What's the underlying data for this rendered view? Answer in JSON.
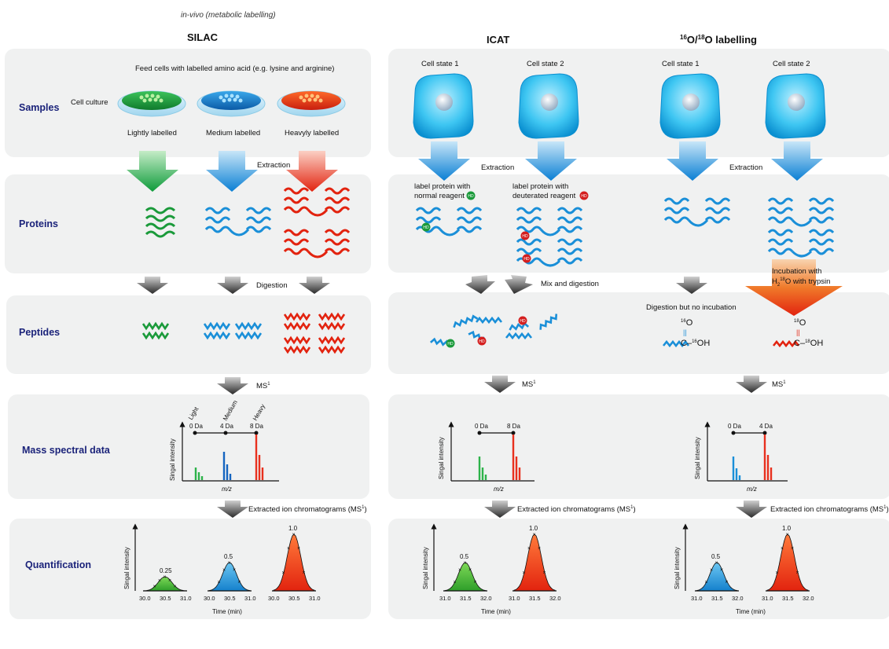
{
  "header": {
    "invivo": "in-vivo (metabolic labelling)",
    "silac": "SILAC",
    "icat": "ICAT",
    "o18_sup1": "16",
    "o18_mid": "O/",
    "o18_sup2": "18",
    "o18_end": "O labelling"
  },
  "rows": {
    "samples": "Samples",
    "proteins": "Proteins",
    "peptides": "Peptides",
    "mass": "Mass spectral data",
    "quant": "Quantification"
  },
  "silac": {
    "feed": "Feed cells with labelled amino acid (e.g. lysine and arginine)",
    "culture": "Cell culture",
    "light": "Lightly labelled",
    "medium": "Medium labelled",
    "heavy": "Heavyly labelled",
    "extraction": "Extraction",
    "digestion": "Digestion",
    "ms1": "MS",
    "xic": "Extracted ion chromatograms (MS",
    "spec": {
      "labels": [
        "Light",
        "Medium",
        "Heavy"
      ],
      "da": [
        "0 Da",
        "4 Da",
        "8 Da"
      ],
      "xlabel": "m/z",
      "ylabel": "Singal intensity"
    },
    "quant": {
      "values": [
        "0.25",
        "0.5",
        "1.0"
      ],
      "ticks": [
        "30.0",
        "30.5",
        "31.0",
        "30.0",
        "30.5",
        "31.0",
        "30.0",
        "30.5",
        "31.0"
      ],
      "xlabel": "Time (min)",
      "ylabel": "Singal intensity"
    }
  },
  "icat": {
    "state1": "Cell state 1",
    "state2": "Cell state 2",
    "extraction": "Extraction",
    "label1a": "label protein with",
    "label1b": "normal reagent",
    "label2a": "label protein with",
    "label2b": "deuterated reagent",
    "mix": "Mix and digestion",
    "ms1": "MS",
    "xic": "Extracted ion chromatograms (MS",
    "spec": {
      "da": [
        "0 Da",
        "8 Da"
      ],
      "xlabel": "m/z",
      "ylabel": "Singal intensity"
    },
    "quant": {
      "values": [
        "0.5",
        "1.0"
      ],
      "ticks": [
        "31.0",
        "31.5",
        "32.0",
        "31.0",
        "31.5",
        "32.0"
      ],
      "xlabel": "Time (min)",
      "ylabel": "Singal intensity"
    }
  },
  "o18": {
    "state1": "Cell state 1",
    "state2": "Cell state 2",
    "extraction": "Extraction",
    "incub1": "Incubation with",
    "incub2a": "H",
    "incub2sub": "2",
    "incub2sup": "18",
    "incub2b": "O with trypsin",
    "nodigest": "Digestion but no incubation",
    "ms1": "MS",
    "xic": "Extracted ion chromatograms (MS",
    "chem16": {
      "sup": "16",
      "o": "O",
      "c": "C",
      "oh_sup": "16",
      "oh": "OH"
    },
    "chem18": {
      "sup": "18",
      "o": "O",
      "c": "C",
      "oh_sup": "18",
      "oh": "OH"
    },
    "spec": {
      "da": [
        "0 Da",
        "4 Da"
      ],
      "xlabel": "m/z",
      "ylabel": "Singal intensity"
    },
    "quant": {
      "values": [
        "0.5",
        "1.0"
      ],
      "ticks": [
        "31.0",
        "31.5",
        "32.0",
        "31.0",
        "31.5",
        "32.0"
      ],
      "xlabel": "Time (min)",
      "ylabel": "Singal intensity"
    }
  },
  "tag_hd": "HD",
  "colors": {
    "green": "#2db34a",
    "blue": "#1a8fd8",
    "red": "#e8301e",
    "navy": "#1b237a",
    "panel": "#f0f1f1"
  }
}
